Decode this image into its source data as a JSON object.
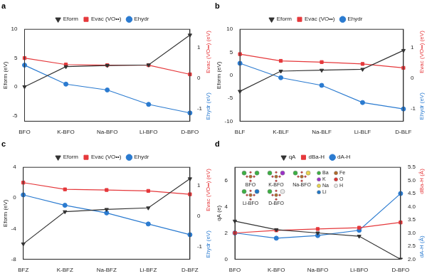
{
  "chart_data": [
    {
      "type": "line",
      "title": "a",
      "categories": [
        "BFO",
        "K-BFO",
        "Na-BFO",
        "Li-BFO",
        "D-BFO"
      ],
      "y_label": "Eform (eV)",
      "y2_label": [
        "Evac (VO••) (eV)",
        "Ehydr (eV)"
      ],
      "ylim": [
        -6,
        10
      ],
      "yticks": [
        -5,
        0,
        5,
        10
      ],
      "y2lim": [
        -1.4,
        1.6
      ],
      "y2ticks": [
        -1,
        0,
        1
      ],
      "legend": "top",
      "series": [
        {
          "name": "Eform",
          "color": "#333333",
          "marker": "triangle_down",
          "values": [
            0,
            3.5,
            3.7,
            3.8,
            9.0
          ]
        },
        {
          "name": "Evac (VO••)",
          "color": "#e5383b",
          "marker": "square",
          "axis": "y2",
          "values": [
            0.66,
            0.45,
            0.43,
            0.43,
            0.13
          ]
        },
        {
          "name": "Ehydr",
          "color": "#2b7bd0",
          "marker": "circle",
          "axis": "y2",
          "values": [
            0.43,
            -0.19,
            -0.38,
            -0.85,
            -1.13
          ]
        }
      ]
    },
    {
      "type": "line",
      "title": "b",
      "categories": [
        "BLF",
        "K-BLF",
        "Na-BLF",
        "Li-BLF",
        "D-BLF"
      ],
      "y_label": "Eform (eV)",
      "y2_label": [
        "Evac (VO••) (eV)",
        "Ehydr (eV)"
      ],
      "ylim": [
        -10,
        10
      ],
      "yticks": [
        -10,
        -5,
        0,
        5,
        10
      ],
      "y2lim": [
        -1.4,
        1.6
      ],
      "y2ticks": [
        -1,
        0,
        1
      ],
      "legend": "top",
      "series": [
        {
          "name": "Eform",
          "color": "#333333",
          "marker": "triangle_down",
          "values": [
            -3.5,
            0.9,
            1.1,
            1.3,
            5.4
          ]
        },
        {
          "name": "Evac (VO••)",
          "color": "#e5383b",
          "marker": "square",
          "axis": "y2",
          "values": [
            0.79,
            0.57,
            0.53,
            0.47,
            0.34
          ]
        },
        {
          "name": "Ehydr",
          "color": "#2b7bd0",
          "marker": "circle",
          "axis": "y2",
          "values": [
            0.49,
            0.02,
            -0.23,
            -0.79,
            -1.0
          ]
        }
      ]
    },
    {
      "type": "line",
      "title": "c",
      "categories": [
        "BFZ",
        "K-BFZ",
        "Na-BFZ",
        "Li-BFZ",
        "D-BFZ"
      ],
      "y_label": "Eform (eV)",
      "y2_label": [
        "Evac (VO••) (eV)",
        "Ehydr (eV)"
      ],
      "ylim": [
        -8,
        4
      ],
      "yticks": [
        -8,
        -4,
        0,
        4
      ],
      "y2lim": [
        -1.4,
        1.6
      ],
      "y2ticks": [
        -1,
        0,
        1
      ],
      "legend": "top",
      "series": [
        {
          "name": "Eform",
          "color": "#333333",
          "marker": "triangle_down",
          "values": [
            -6.0,
            -1.8,
            -1.5,
            -1.3,
            2.5
          ]
        },
        {
          "name": "Evac (VO••)",
          "color": "#e5383b",
          "marker": "square",
          "axis": "y2",
          "values": [
            1.1,
            0.88,
            0.86,
            0.83,
            0.72
          ]
        },
        {
          "name": "Ehydr",
          "color": "#2b7bd0",
          "marker": "circle",
          "axis": "y2",
          "values": [
            0.7,
            0.36,
            0.11,
            -0.25,
            -0.6
          ]
        }
      ]
    },
    {
      "type": "line",
      "title": "d",
      "categories": [
        "BFO",
        "K-BFO",
        "Na-BFO",
        "Li-BFO",
        "D-BFO"
      ],
      "y_label": "qA (e)",
      "y2_label": [
        "dBa-H (Å)",
        "dA-H (Å)"
      ],
      "ylim": [
        0,
        7
      ],
      "yticks": [
        0,
        2,
        4,
        6
      ],
      "y2lim": [
        2,
        5.5
      ],
      "y2ticks": [
        {
          "value": 2,
          "label": "2.0"
        },
        2.5,
        {
          "value": 3,
          "label": "3.0"
        },
        3.5,
        {
          "value": 4,
          "label": "4.0"
        },
        4.5,
        {
          "value": 5,
          "label": "5.0"
        },
        5.5
      ],
      "legend": "top",
      "series": [
        {
          "name": "qA",
          "color": "#333333",
          "marker": "triangle_down",
          "values": [
            2.9,
            2.25,
            2.0,
            1.75,
            0.0
          ]
        },
        {
          "name": "dBa-H",
          "color": "#e5383b",
          "marker": "square",
          "axis": "y2",
          "values": [
            3.0,
            3.1,
            3.15,
            3.2,
            3.4
          ]
        },
        {
          "name": "dA-H",
          "color": "#2b7bd0",
          "marker": "circle",
          "axis": "y2",
          "values": [
            3.0,
            2.8,
            2.9,
            3.1,
            4.5
          ]
        }
      ],
      "inset": {
        "labels": [
          "BFO",
          "K-BFO",
          "Na-BFO",
          "Li-BFO",
          "D-BFO"
        ],
        "elements": [
          {
            "name": "Ba",
            "color": "#3cb043"
          },
          {
            "name": "K",
            "color": "#9b30c8"
          },
          {
            "name": "Na",
            "color": "#e8d44d"
          },
          {
            "name": "Li",
            "color": "#1f77c8"
          },
          {
            "name": "Fe",
            "color": "#b06a2a"
          },
          {
            "name": "O",
            "color": "#e03030"
          },
          {
            "name": "H",
            "color": "#e8e8e8"
          }
        ]
      }
    }
  ]
}
